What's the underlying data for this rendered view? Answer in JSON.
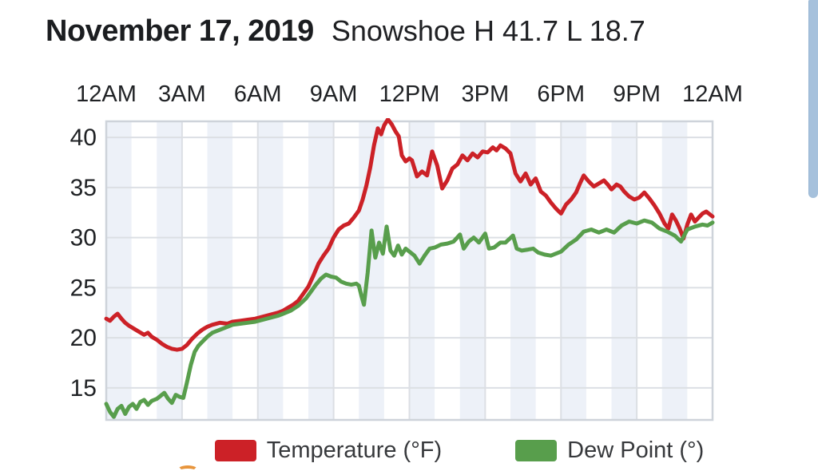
{
  "header": {
    "date_title": "November 17, 2019",
    "station_summary": "Snowshoe H 41.7 L 18.7"
  },
  "legend": [
    {
      "name": "temperature",
      "label": "Temperature (°F)",
      "color": "#cc2127"
    },
    {
      "name": "dew-point",
      "label": "Dew Point (°)",
      "color": "#589e4c"
    }
  ],
  "colors": {
    "temperature_line": "#cc2127",
    "dew_point_line": "#589e4c",
    "hour_band": "#edf1f8",
    "gridline": "#dcdfe4",
    "plot_border": "#ced3da",
    "tick_label": "#202225",
    "scrollbar": "#a6c1dc",
    "next_chart_accent": "#e8953c"
  },
  "chart_data": {
    "type": "line",
    "title": "November 17, 2019 — Snowshoe",
    "subtitle": "H 41.7 L 18.7",
    "high": 41.7,
    "low": 18.7,
    "x_tick_labels": [
      "12AM",
      "3AM",
      "6AM",
      "9AM",
      "12PM",
      "3PM",
      "6PM",
      "9PM",
      "12AM"
    ],
    "x_tick_hours": [
      0,
      3,
      6,
      9,
      12,
      15,
      18,
      21,
      24
    ],
    "y_ticks": [
      15,
      20,
      25,
      30,
      35,
      40
    ],
    "xlim_hours": [
      0,
      24
    ],
    "ylim": [
      11.8,
      41.6
    ],
    "grid": true,
    "banding": "alternating 1-hour vertical bands, even hours shaded",
    "legend_position": "bottom",
    "xlabel": "",
    "ylabel": "",
    "series": [
      {
        "name": "Temperature (°F)",
        "color": "#cc2127",
        "points": [
          [
            0,
            21.9
          ],
          [
            0.15,
            21.7
          ],
          [
            0.3,
            22.1
          ],
          [
            0.45,
            22.4
          ],
          [
            0.6,
            21.9
          ],
          [
            0.75,
            21.5
          ],
          [
            0.9,
            21.2
          ],
          [
            1.1,
            20.9
          ],
          [
            1.3,
            20.6
          ],
          [
            1.5,
            20.3
          ],
          [
            1.65,
            20.5
          ],
          [
            1.8,
            20.1
          ],
          [
            2,
            19.8
          ],
          [
            2.2,
            19.4
          ],
          [
            2.4,
            19.1
          ],
          [
            2.6,
            18.9
          ],
          [
            2.8,
            18.8
          ],
          [
            3,
            18.9
          ],
          [
            3.2,
            19.3
          ],
          [
            3.4,
            19.9
          ],
          [
            3.6,
            20.4
          ],
          [
            3.8,
            20.8
          ],
          [
            4,
            21.1
          ],
          [
            4.2,
            21.3
          ],
          [
            4.5,
            21.5
          ],
          [
            4.8,
            21.4
          ],
          [
            5,
            21.6
          ],
          [
            5.3,
            21.7
          ],
          [
            5.6,
            21.8
          ],
          [
            5.9,
            21.9
          ],
          [
            6.2,
            22.1
          ],
          [
            6.5,
            22.3
          ],
          [
            6.8,
            22.5
          ],
          [
            7,
            22.7
          ],
          [
            7.2,
            23
          ],
          [
            7.4,
            23.3
          ],
          [
            7.6,
            23.7
          ],
          [
            7.8,
            24.4
          ],
          [
            8,
            25.1
          ],
          [
            8.2,
            26.2
          ],
          [
            8.4,
            27.4
          ],
          [
            8.6,
            28.2
          ],
          [
            8.8,
            28.9
          ],
          [
            9,
            30
          ],
          [
            9.2,
            30.8
          ],
          [
            9.4,
            31.2
          ],
          [
            9.6,
            31.4
          ],
          [
            9.8,
            32
          ],
          [
            10,
            32.7
          ],
          [
            10.15,
            33.8
          ],
          [
            10.3,
            35.2
          ],
          [
            10.45,
            37
          ],
          [
            10.6,
            39.2
          ],
          [
            10.75,
            40.9
          ],
          [
            10.88,
            40.3
          ],
          [
            11,
            41.2
          ],
          [
            11.15,
            41.8
          ],
          [
            11.3,
            41.3
          ],
          [
            11.45,
            40.6
          ],
          [
            11.58,
            40.1
          ],
          [
            11.7,
            38.2
          ],
          [
            11.85,
            37.6
          ],
          [
            12,
            37.9
          ],
          [
            12.1,
            37.7
          ],
          [
            12.3,
            36.1
          ],
          [
            12.5,
            36.6
          ],
          [
            12.7,
            36.2
          ],
          [
            12.9,
            38.6
          ],
          [
            13.1,
            37.2
          ],
          [
            13.3,
            34.9
          ],
          [
            13.5,
            35.7
          ],
          [
            13.7,
            36.9
          ],
          [
            13.9,
            37.3
          ],
          [
            14.1,
            38.2
          ],
          [
            14.3,
            37.7
          ],
          [
            14.5,
            38.4
          ],
          [
            14.7,
            38
          ],
          [
            14.9,
            38.6
          ],
          [
            15.1,
            38.5
          ],
          [
            15.3,
            39
          ],
          [
            15.45,
            38.7
          ],
          [
            15.6,
            39.2
          ],
          [
            15.8,
            38.9
          ],
          [
            16,
            38.4
          ],
          [
            16.2,
            36.4
          ],
          [
            16.4,
            35.6
          ],
          [
            16.6,
            36.4
          ],
          [
            16.8,
            35.3
          ],
          [
            17,
            35.9
          ],
          [
            17.2,
            34.6
          ],
          [
            17.4,
            34.2
          ],
          [
            17.6,
            33.5
          ],
          [
            17.8,
            32.9
          ],
          [
            18,
            32.4
          ],
          [
            18.2,
            33.3
          ],
          [
            18.4,
            33.8
          ],
          [
            18.6,
            34.5
          ],
          [
            18.75,
            35.4
          ],
          [
            18.9,
            36.2
          ],
          [
            19.1,
            35.6
          ],
          [
            19.3,
            35.1
          ],
          [
            19.5,
            35.4
          ],
          [
            19.7,
            35.7
          ],
          [
            19.85,
            35.3
          ],
          [
            20,
            34.8
          ],
          [
            20.2,
            35.3
          ],
          [
            20.35,
            35.1
          ],
          [
            20.5,
            34.6
          ],
          [
            20.7,
            34.1
          ],
          [
            20.9,
            33.8
          ],
          [
            21.1,
            34
          ],
          [
            21.3,
            34.5
          ],
          [
            21.5,
            33.9
          ],
          [
            21.7,
            33.2
          ],
          [
            21.9,
            32.4
          ],
          [
            22.1,
            31.4
          ],
          [
            22.25,
            30.9
          ],
          [
            22.4,
            32.3
          ],
          [
            22.55,
            31.7
          ],
          [
            22.7,
            30.9
          ],
          [
            22.85,
            29.9
          ],
          [
            23,
            31.3
          ],
          [
            23.15,
            32.3
          ],
          [
            23.3,
            31.6
          ],
          [
            23.45,
            32
          ],
          [
            23.6,
            32.4
          ],
          [
            23.75,
            32.6
          ],
          [
            23.9,
            32.3
          ],
          [
            24,
            32.1
          ]
        ]
      },
      {
        "name": "Dew Point (°)",
        "color": "#589e4c",
        "points": [
          [
            0,
            13.4
          ],
          [
            0.15,
            12.6
          ],
          [
            0.3,
            12.1
          ],
          [
            0.45,
            12.9
          ],
          [
            0.6,
            13.2
          ],
          [
            0.75,
            12.4
          ],
          [
            0.9,
            13.1
          ],
          [
            1.05,
            13.4
          ],
          [
            1.2,
            12.9
          ],
          [
            1.35,
            13.6
          ],
          [
            1.5,
            13.8
          ],
          [
            1.65,
            13.3
          ],
          [
            1.8,
            13.7
          ],
          [
            2,
            13.9
          ],
          [
            2.15,
            14.2
          ],
          [
            2.3,
            14.5
          ],
          [
            2.45,
            13.9
          ],
          [
            2.6,
            13.5
          ],
          [
            2.75,
            14.3
          ],
          [
            2.9,
            14.1
          ],
          [
            3.05,
            14
          ],
          [
            3.2,
            15.6
          ],
          [
            3.35,
            17.3
          ],
          [
            3.5,
            18.6
          ],
          [
            3.65,
            19.2
          ],
          [
            3.8,
            19.6
          ],
          [
            4,
            20.1
          ],
          [
            4.2,
            20.5
          ],
          [
            4.4,
            20.7
          ],
          [
            4.6,
            20.9
          ],
          [
            4.8,
            21.1
          ],
          [
            5,
            21.3
          ],
          [
            5.3,
            21.4
          ],
          [
            5.6,
            21.5
          ],
          [
            5.9,
            21.6
          ],
          [
            6.2,
            21.8
          ],
          [
            6.5,
            22
          ],
          [
            6.8,
            22.2
          ],
          [
            7,
            22.4
          ],
          [
            7.3,
            22.7
          ],
          [
            7.6,
            23.2
          ],
          [
            7.9,
            23.9
          ],
          [
            8.1,
            24.6
          ],
          [
            8.3,
            25.3
          ],
          [
            8.5,
            25.9
          ],
          [
            8.7,
            26.3
          ],
          [
            8.9,
            26.1
          ],
          [
            9.1,
            26
          ],
          [
            9.3,
            25.6
          ],
          [
            9.5,
            25.4
          ],
          [
            9.7,
            25.3
          ],
          [
            9.9,
            25.4
          ],
          [
            10,
            25.2
          ],
          [
            10.1,
            24.2
          ],
          [
            10.2,
            23.3
          ],
          [
            10.35,
            26.5
          ],
          [
            10.5,
            30.7
          ],
          [
            10.65,
            28
          ],
          [
            10.8,
            29.5
          ],
          [
            10.95,
            28.4
          ],
          [
            11.1,
            31.1
          ],
          [
            11.25,
            28.7
          ],
          [
            11.4,
            28.2
          ],
          [
            11.55,
            29.2
          ],
          [
            11.7,
            28.3
          ],
          [
            11.85,
            28.9
          ],
          [
            12,
            28.6
          ],
          [
            12.2,
            28.2
          ],
          [
            12.4,
            27.4
          ],
          [
            12.6,
            28.2
          ],
          [
            12.8,
            28.9
          ],
          [
            13,
            29
          ],
          [
            13.25,
            29.3
          ],
          [
            13.5,
            29.4
          ],
          [
            13.75,
            29.6
          ],
          [
            14,
            30.3
          ],
          [
            14.15,
            28.9
          ],
          [
            14.35,
            29.6
          ],
          [
            14.55,
            30
          ],
          [
            14.75,
            29.5
          ],
          [
            15,
            30.4
          ],
          [
            15.15,
            28.9
          ],
          [
            15.35,
            29
          ],
          [
            15.6,
            29.5
          ],
          [
            15.8,
            29.5
          ],
          [
            16.1,
            30.2
          ],
          [
            16.25,
            28.9
          ],
          [
            16.45,
            28.7
          ],
          [
            16.7,
            28.8
          ],
          [
            16.9,
            28.9
          ],
          [
            17.1,
            28.5
          ],
          [
            17.35,
            28.3
          ],
          [
            17.6,
            28.2
          ],
          [
            17.8,
            28.4
          ],
          [
            18,
            28.6
          ],
          [
            18.3,
            29.3
          ],
          [
            18.6,
            29.8
          ],
          [
            18.9,
            30.6
          ],
          [
            19.2,
            30.8
          ],
          [
            19.5,
            30.5
          ],
          [
            19.8,
            30.8
          ],
          [
            20.1,
            30.5
          ],
          [
            20.4,
            31.2
          ],
          [
            20.7,
            31.6
          ],
          [
            21,
            31.4
          ],
          [
            21.3,
            31.7
          ],
          [
            21.6,
            31.5
          ],
          [
            21.9,
            30.9
          ],
          [
            22.2,
            30.6
          ],
          [
            22.5,
            30.2
          ],
          [
            22.75,
            29.6
          ],
          [
            23,
            30.8
          ],
          [
            23.3,
            31.1
          ],
          [
            23.6,
            31.3
          ],
          [
            23.8,
            31.2
          ],
          [
            24,
            31.5
          ]
        ]
      }
    ]
  }
}
